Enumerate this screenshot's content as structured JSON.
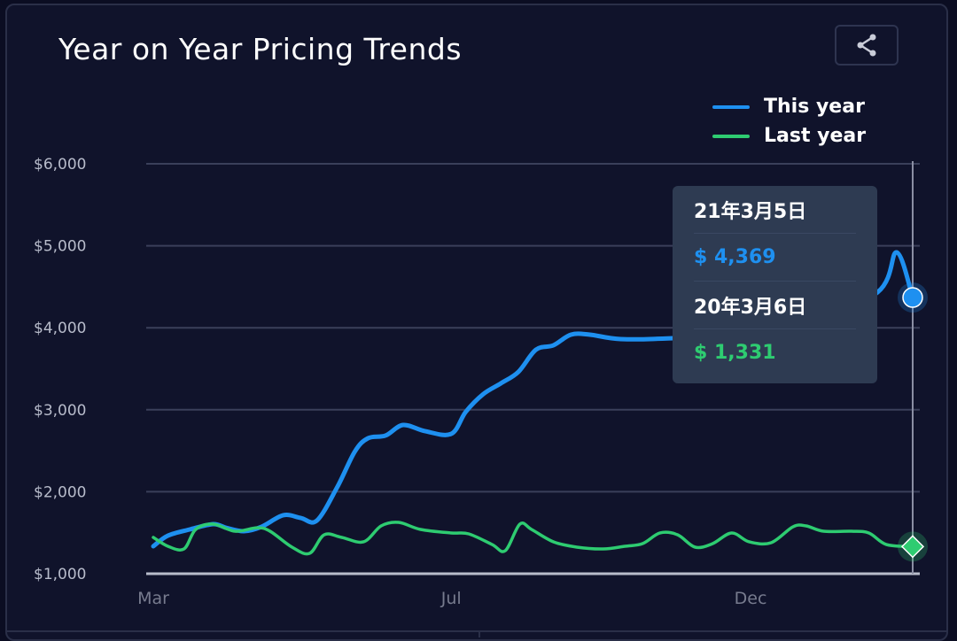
{
  "header": {
    "title": "Year on Year Pricing Trends",
    "share_icon": "share-icon"
  },
  "tooltip": {
    "date1": "21年3月5日",
    "value1": "$ 4,369",
    "date2": "20年3月6日",
    "value2": "$ 1,331"
  },
  "chart_data": {
    "type": "line",
    "title": "Year on Year Pricing Trends",
    "xlabel": "",
    "ylabel": "",
    "ylim": [
      1000,
      6000
    ],
    "xlim": [
      0,
      52
    ],
    "yticks": [
      {
        "v": 6000,
        "label": "$6,000"
      },
      {
        "v": 5000,
        "label": "$5,000"
      },
      {
        "v": 4000,
        "label": "$4,000"
      },
      {
        "v": 3000,
        "label": "$3,000"
      },
      {
        "v": 2000,
        "label": "$2,000"
      },
      {
        "v": 1000,
        "label": "$1,000"
      }
    ],
    "xticks": [
      {
        "v": 0,
        "label": "Mar"
      },
      {
        "v": 20.4,
        "label": "Jul"
      },
      {
        "v": 40.9,
        "label": "Dec"
      }
    ],
    "grid": true,
    "legend": "top-right",
    "series": [
      {
        "name": "This year",
        "color": "#1e90f0",
        "x": [
          0,
          1.0,
          2.5,
          4.1,
          5.0,
          6.2,
          7.4,
          8.9,
          10.1,
          11.2,
          12.6,
          13.8,
          14.7,
          15.9,
          17.1,
          18.6,
          20.4,
          21.4,
          22.6,
          23.8,
          25.0,
          26.2,
          27.4,
          28.6,
          29.9,
          32.0,
          35.6,
          44.1,
          49.6,
          50.9,
          52
        ],
        "y": [
          1335,
          1464,
          1540,
          1605,
          1560,
          1518,
          1572,
          1713,
          1680,
          1648,
          2058,
          2490,
          2652,
          2685,
          2814,
          2739,
          2706,
          2976,
          3192,
          3322,
          3462,
          3732,
          3786,
          3916,
          3916,
          3862,
          3873,
          3950,
          4434,
          4920,
          4369
        ]
      },
      {
        "name": "Last year",
        "color": "#2ecc71",
        "x": [
          0,
          1.0,
          2.1,
          2.9,
          4.1,
          5.6,
          7.1,
          8.0,
          9.5,
          10.7,
          11.7,
          12.9,
          14.4,
          15.6,
          16.8,
          18.3,
          20.4,
          21.6,
          23.2,
          24.1,
          25.1,
          25.9,
          27.4,
          29.0,
          30.8,
          32.3,
          33.5,
          34.7,
          35.9,
          37.1,
          38.3,
          39.6,
          40.8,
          42.3,
          43.8,
          44.7,
          45.9,
          47.8,
          49.0,
          50.2,
          52
        ],
        "y": [
          1443,
          1335,
          1302,
          1540,
          1605,
          1518,
          1560,
          1518,
          1324,
          1248,
          1475,
          1443,
          1389,
          1583,
          1626,
          1540,
          1497,
          1486,
          1356,
          1281,
          1605,
          1540,
          1389,
          1324,
          1302,
          1335,
          1367,
          1497,
          1475,
          1324,
          1367,
          1497,
          1389,
          1378,
          1572,
          1583,
          1518,
          1518,
          1497,
          1356,
          1331
        ]
      }
    ]
  }
}
